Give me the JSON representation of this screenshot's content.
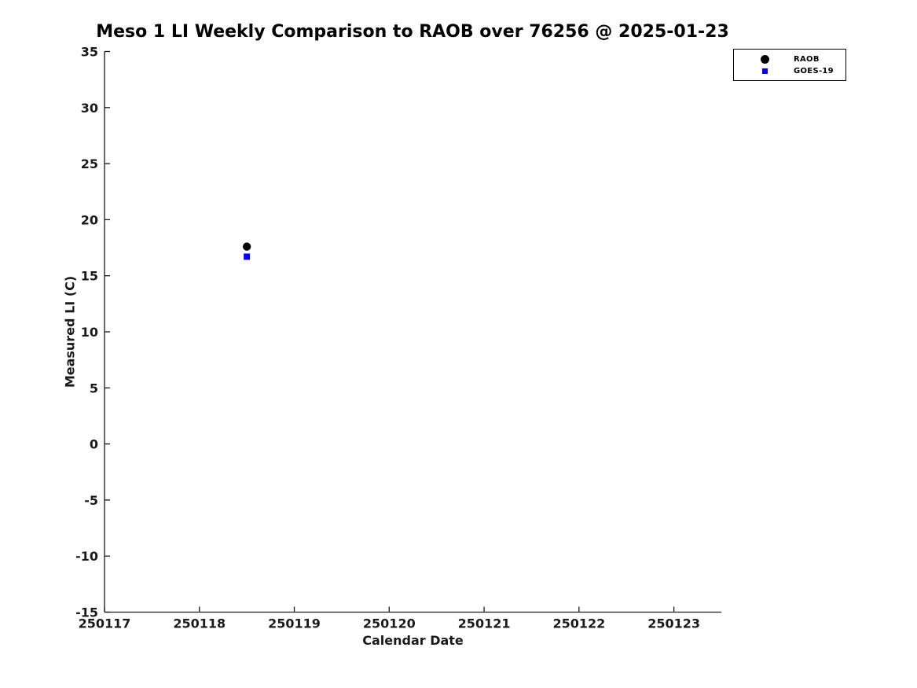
{
  "chart_data": {
    "type": "scatter",
    "title": "Meso 1 LI Weekly Comparison to RAOB over 76256 @ 2025-01-23",
    "xlabel": "Calendar Date",
    "ylabel": "Measured LI (C)",
    "xlim": [
      250117,
      250123.5
    ],
    "ylim": [
      -15,
      35
    ],
    "xticks": [
      250117,
      250118,
      250119,
      250120,
      250121,
      250122,
      250123
    ],
    "yticks": [
      -15,
      -10,
      -5,
      0,
      5,
      10,
      15,
      20,
      25,
      30,
      35
    ],
    "grid": false,
    "axis_color": "#1a1a1a",
    "legend_position": "outside-top-right",
    "series": [
      {
        "name": "RAOB",
        "marker": "circle",
        "color": "#000000",
        "x": [
          250118.5
        ],
        "y": [
          17.6
        ]
      },
      {
        "name": "GOES-19",
        "marker": "square",
        "color": "#0000ee",
        "x": [
          250118.5
        ],
        "y": [
          16.7
        ]
      }
    ]
  }
}
